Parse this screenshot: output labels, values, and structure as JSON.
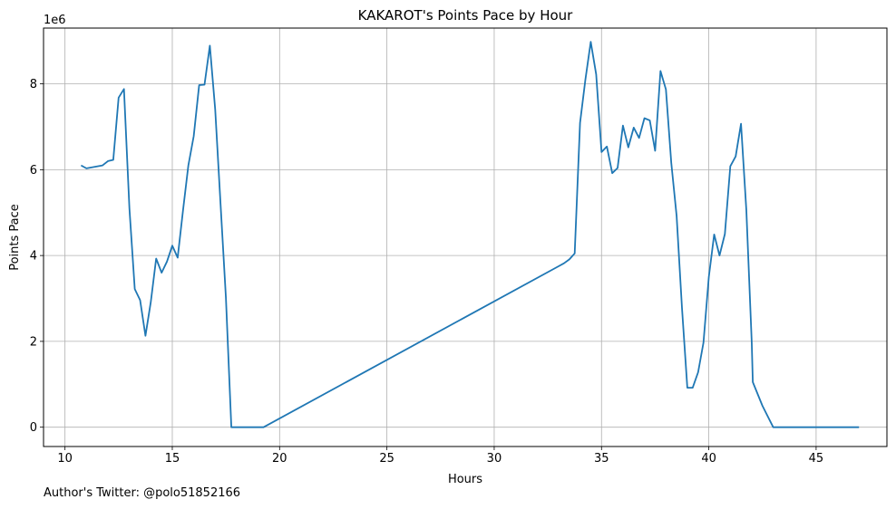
{
  "chart_data": {
    "type": "line",
    "title": "KAKAROT's Points Pace by Hour",
    "xlabel": "Hours",
    "ylabel": "Points Pace",
    "y_offset_label": "1e6",
    "xlim": [
      9,
      48.3
    ],
    "ylim": [
      -0.45,
      9.3
    ],
    "xticks": [
      10,
      15,
      20,
      25,
      30,
      35,
      40,
      45
    ],
    "yticks": [
      0,
      2,
      4,
      6,
      8
    ],
    "grid": true,
    "series": [
      {
        "color": "#1f77b4",
        "x": [
          10.75,
          11.0,
          11.75,
          12.0,
          12.25,
          12.5,
          12.75,
          13.0,
          13.25,
          13.5,
          13.75,
          14.0,
          14.25,
          14.5,
          14.75,
          15.0,
          15.25,
          15.5,
          15.75,
          16.0,
          16.25,
          16.5,
          16.75,
          17.0,
          17.25,
          17.5,
          17.75,
          18.0,
          19.25,
          33.0,
          33.25,
          33.5,
          33.75,
          34.0,
          34.25,
          34.5,
          34.75,
          35.0,
          35.25,
          35.5,
          35.75,
          36.0,
          36.25,
          36.5,
          36.75,
          37.0,
          37.25,
          37.5,
          37.75,
          38.0,
          38.25,
          38.5,
          38.75,
          39.0,
          39.25,
          39.5,
          39.75,
          40.0,
          40.25,
          40.5,
          40.75,
          41.0,
          41.25,
          41.5,
          41.75,
          42.0,
          42.05,
          42.5,
          43.0,
          47.0
        ],
        "y": [
          6.1,
          6.03,
          6.1,
          6.2,
          6.23,
          7.68,
          7.88,
          5.1,
          3.22,
          2.96,
          2.13,
          2.92,
          3.93,
          3.6,
          3.86,
          4.23,
          3.95,
          5.05,
          6.1,
          6.78,
          7.97,
          7.98,
          8.89,
          7.4,
          5.2,
          3.02,
          0.0,
          0.0,
          0.0,
          3.75,
          3.82,
          3.91,
          4.05,
          7.09,
          8.1,
          8.98,
          8.22,
          6.41,
          6.54,
          5.92,
          6.04,
          7.03,
          6.52,
          6.98,
          6.74,
          7.2,
          7.15,
          6.44,
          8.3,
          7.87,
          6.16,
          4.92,
          2.78,
          0.92,
          0.92,
          1.28,
          1.97,
          3.5,
          4.49,
          4.0,
          4.5,
          6.08,
          6.31,
          7.07,
          5.05,
          1.99,
          1.05,
          0.5,
          0.0,
          0.0
        ]
      }
    ]
  },
  "footer_text": "Author's Twitter: @polo51852166"
}
